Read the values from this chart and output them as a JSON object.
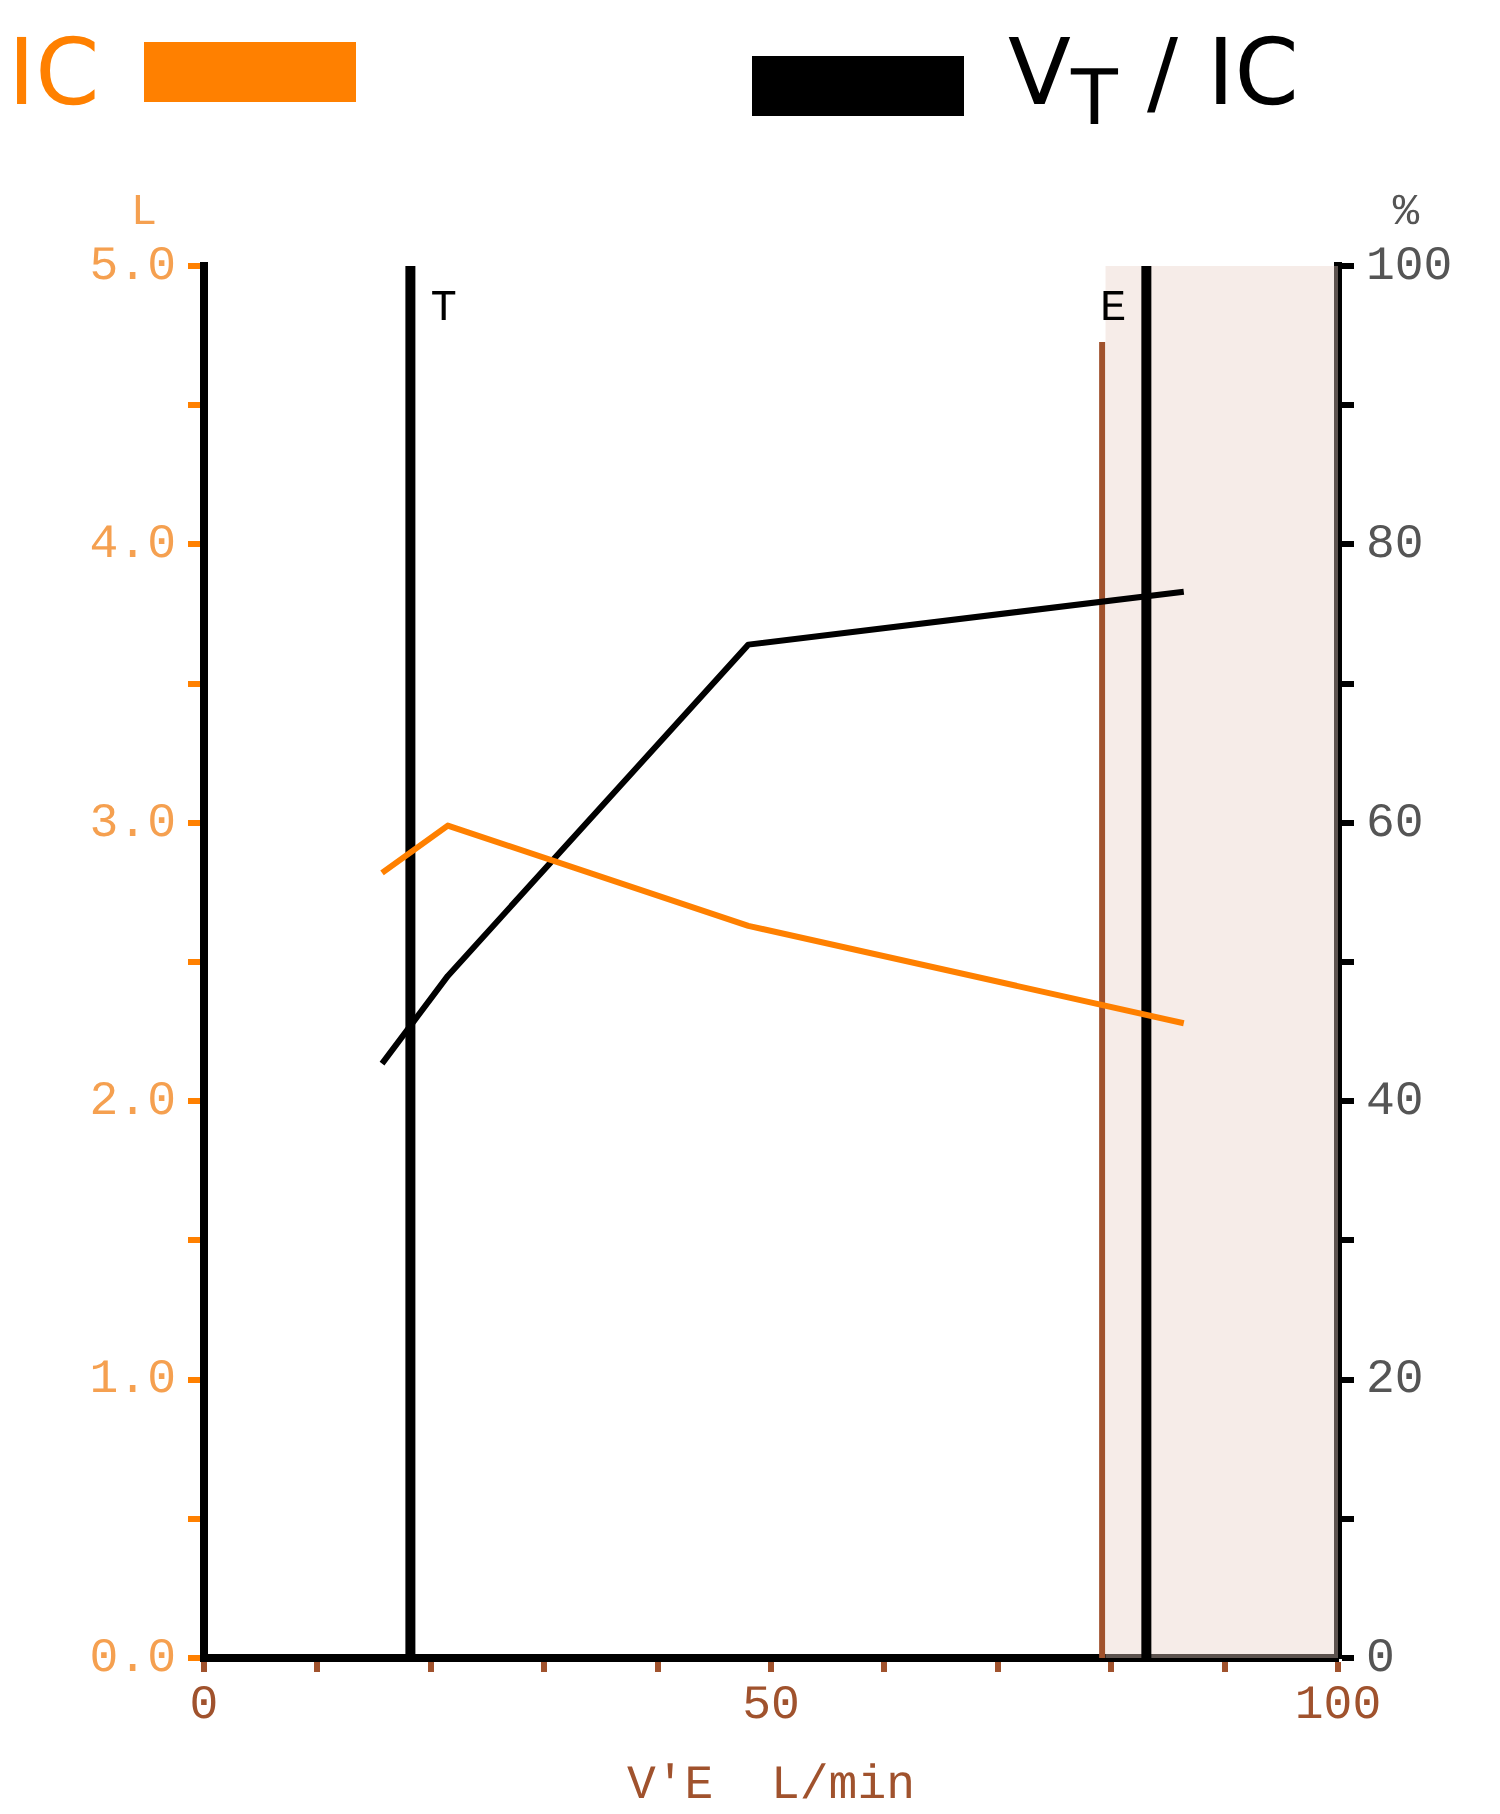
{
  "chart_data": {
    "type": "line",
    "xlabel": "V'E  L/min",
    "ylabel": "L",
    "y2label": "%",
    "legend": "top",
    "series": [
      {
        "name": "IC",
        "color": "#ff8000",
        "x": [
          15.7,
          21.5,
          48,
          86.4
        ],
        "values": [
          2.82,
          2.99,
          2.63,
          2.28
        ]
      },
      {
        "name": "V$_{T}$ / IC",
        "color": "#000000",
        "axis": "y2",
        "x": [
          15.7,
          21.5,
          48,
          86.4
        ],
        "values": [
          42.7,
          49,
          72.8,
          76.6
        ]
      }
    ],
    "xlim": [
      0,
      100
    ],
    "xticks": [
      0,
      {
        "value": 10,
        "label": null
      },
      {
        "value": 20,
        "label": null
      },
      {
        "value": 30,
        "label": null
      },
      {
        "value": 40,
        "label": null
      },
      50,
      {
        "value": 60,
        "label": null
      },
      {
        "value": 70,
        "label": null
      },
      {
        "value": 80,
        "label": null
      },
      {
        "value": 90,
        "label": null
      },
      100
    ],
    "ylim": [
      0,
      5
    ],
    "yticks": [
      {
        "value": 0,
        "label": "0.0"
      },
      {
        "value": 0.5,
        "label": null
      },
      {
        "value": 1,
        "label": "1.0"
      },
      {
        "value": 1.5,
        "label": null
      },
      {
        "value": 2,
        "label": "2.0"
      },
      {
        "value": 2.5,
        "label": null
      },
      {
        "value": 3,
        "label": "3.0"
      },
      {
        "value": 3.5,
        "label": null
      },
      {
        "value": 4,
        "label": "4.0"
      },
      {
        "value": 4.5,
        "label": null
      },
      {
        "value": 5,
        "label": "5.0"
      }
    ],
    "y2lim": [
      0,
      100
    ],
    "y2ticks": [
      0,
      {
        "value": 10,
        "label": null
      },
      20,
      {
        "value": 30,
        "label": null
      },
      40,
      {
        "value": 50,
        "label": null
      },
      60,
      {
        "value": 70,
        "label": null
      },
      80,
      {
        "value": 90,
        "label": null
      },
      100
    ],
    "ref_lines": [
      {
        "axis": "x",
        "value": 18.2,
        "label": "T",
        "color": "#000000"
      },
      {
        "axis": "x",
        "value": 79.2,
        "color": "#a0522d"
      },
      {
        "axis": "x",
        "value": 83.1,
        "label": "E",
        "color": "#000000"
      }
    ],
    "bands": [
      {
        "axis": "x",
        "from": 79.5,
        "to": 100,
        "color": "#e8cfc6"
      }
    ],
    "grid": false,
    "marker": "none",
    "line_style": "solid"
  }
}
